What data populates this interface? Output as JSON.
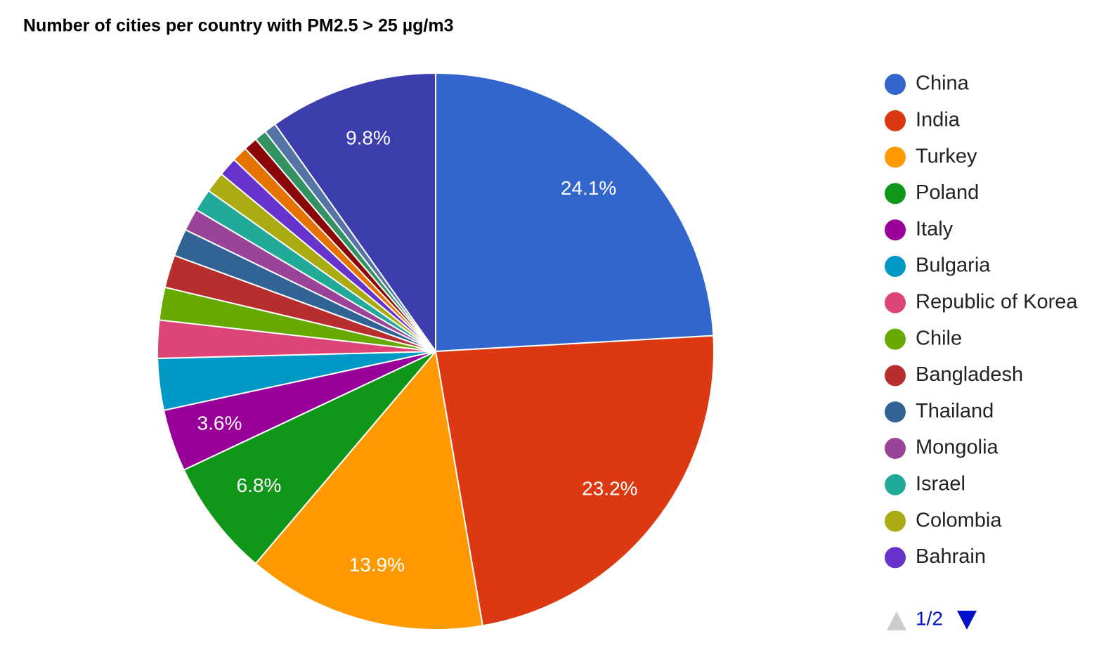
{
  "chart_data": {
    "type": "pie",
    "title": "Number of cities per country with PM2.5 > 25 µg/m3",
    "categories": [
      "China",
      "India",
      "Turkey",
      "Poland",
      "Italy",
      "Bulgaria",
      "Republic of Korea",
      "Chile",
      "Bangladesh",
      "Thailand",
      "Mongolia",
      "Israel",
      "Colombia",
      "Bahrain",
      null,
      null,
      null,
      null,
      null
    ],
    "values": [
      24.1,
      23.2,
      13.9,
      6.8,
      3.6,
      3.0,
      2.2,
      1.9,
      1.9,
      1.6,
      1.3,
      1.3,
      1.2,
      1.1,
      0.9,
      0.8,
      0.7,
      0.7,
      9.8
    ],
    "value_labels": [
      "24.1%",
      "23.2%",
      "13.9%",
      "6.8%",
      "3.6%",
      null,
      null,
      null,
      null,
      null,
      null,
      null,
      null,
      null,
      null,
      null,
      null,
      null,
      "9.8%"
    ],
    "colors": [
      "#3366CC",
      "#DC3912",
      "#FF9900",
      "#109618",
      "#990099",
      "#0099C6",
      "#DD4477",
      "#66AA00",
      "#B82E2E",
      "#316395",
      "#994499",
      "#22AA99",
      "#AAAA11",
      "#6633CC",
      "#E67300",
      "#8B0707",
      "#329262",
      "#5574A6",
      "#3B3EAC"
    ],
    "legend": "right",
    "pager": "1/2"
  }
}
